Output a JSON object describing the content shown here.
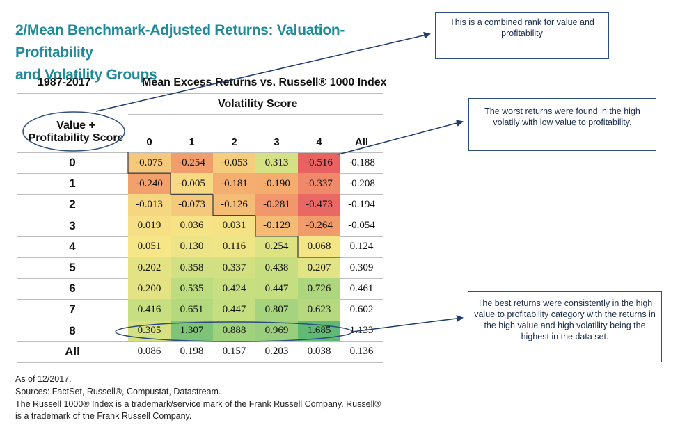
{
  "title_line1": "2/Mean Benchmark-Adjusted Returns: Valuation-Profitability",
  "title_line2": "and Volatility Groups",
  "period_label": "1987-2017",
  "table_header": "Mean Excess Returns vs. Russell® 1000 Index",
  "volatility_label": "Volatility Score",
  "row_axis_label_line1": "Value +",
  "row_axis_label_line2": "Profitability Score",
  "callouts": {
    "combined_rank": "This is a combined rank for value and profitability",
    "worst_returns": "The worst returns were found in the high volatily with low value to profitability.",
    "best_returns": "The best returns were consistently in the high value to profitability category with the returns in the high value and high volatility being the highest in the data set."
  },
  "footer": {
    "line1": "As of 12/2017.",
    "line2": "Sources: FactSet, Russell®, Compustat, Datastream.",
    "line3": "The Russell 1000® Index is a trademark/service mark of the Frank Russell Company. Russell®",
    "line4": "is a trademark of the Frank Russell Company."
  },
  "chart_data": {
    "type": "heatmap",
    "x_label": "Volatility Score",
    "y_label": "Value + Profitability Score",
    "columns": [
      "0",
      "1",
      "2",
      "3",
      "4",
      "All"
    ],
    "rows": [
      "0",
      "1",
      "2",
      "3",
      "4",
      "5",
      "6",
      "7",
      "8",
      "All"
    ],
    "values": [
      [
        "-0.075",
        "-0.254",
        "-0.053",
        "0.313",
        "-0.516",
        "-0.188"
      ],
      [
        "-0.240",
        "-0.005",
        "-0.181",
        "-0.190",
        "-0.337",
        "-0.208"
      ],
      [
        "-0.013",
        "-0.073",
        "-0.126",
        "-0.281",
        "-0.473",
        "-0.194"
      ],
      [
        "0.019",
        "0.036",
        "0.031",
        "-0.129",
        "-0.264",
        "-0.054"
      ],
      [
        "0.051",
        "0.130",
        "0.116",
        "0.254",
        "0.068",
        "0.124"
      ],
      [
        "0.202",
        "0.358",
        "0.337",
        "0.438",
        "0.207",
        "0.309"
      ],
      [
        "0.200",
        "0.535",
        "0.424",
        "0.447",
        "0.726",
        "0.461"
      ],
      [
        "0.416",
        "0.651",
        "0.447",
        "0.807",
        "0.623",
        "0.602"
      ],
      [
        "0.305",
        "1.307",
        "0.888",
        "0.969",
        "1.685",
        "1.133"
      ],
      [
        "0.086",
        "0.198",
        "0.157",
        "0.203",
        "0.038",
        "0.136"
      ]
    ],
    "colored_rows": 9,
    "colored_cols": 5
  }
}
